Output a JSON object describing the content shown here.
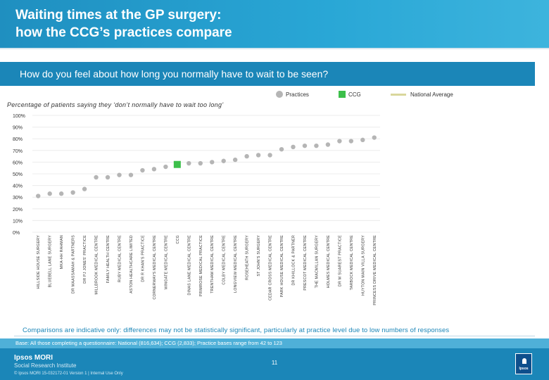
{
  "header": {
    "title": "Waiting times at the GP surgery:\nhow the CCG’s practices compare"
  },
  "question": "How do you feel about how long you normally have to wait to be seen?",
  "legend": {
    "practices": "Practices",
    "ccg": "CCG",
    "national": "National Average"
  },
  "colors": {
    "practice": "#b5b5b5",
    "ccg": "#3cbf4a",
    "national": "#d9d79c",
    "brand": "#1b86b8"
  },
  "chart_data": {
    "type": "scatter",
    "title": "Percentage of patients saying they ‘don’t normally have to wait too long’",
    "ylim": [
      0,
      100
    ],
    "yticks": [
      "100%",
      "90%",
      "80%",
      "70%",
      "60%",
      "50%",
      "40%",
      "30%",
      "20%",
      "10%",
      "0%"
    ],
    "categories": [
      "HILLSIDE HOUSE SURGERY",
      "BLUEBELL LANE SURGERY",
      "MKA-HH RAHMAN",
      "DR MAASSAMAH & PARTNERS",
      "DR PJ JONES' PRACTICE",
      "MILLBROOK MEDICAL CENTRE",
      "FAMILY HEALTH CENTRE",
      "RUBY MEDICAL CENTRE",
      "ASTON HEALTHCARE LIMITED",
      "DR R KHAN'S PRACTICE",
      "CORNERWAYS MEDICAL CENTRE",
      "WINGATE MEDICAL CENTRE",
      "CCG",
      "DINAS LANE MEDICAL CENTRE",
      "PRIMROSE MEDICAL PRACTICE",
      "TRENTHAM MEDICAL CENTRE",
      "COLBY MEDICAL CENTRE",
      "LONGVIEW MEDICAL CENTRE",
      "ROSEHEATH SURGERY",
      "ST JOHN'S SURGERY",
      "CEDAR CROSS MEDICAL CENTRE",
      "PARK HOUSE MEDICAL CENTRE",
      "DR KHILLOCK & PARTNER",
      "PRESCOT MEDICAL CENTRE",
      "THE MACMILLAN SURGERY",
      "HOLMES MEDICAL CENTRE",
      "DR M SUAREST PRACTICE",
      "TARBOCK MEDICAL CENTRE",
      "HUYTON MAIN VILLA SURGERY",
      "PRINCESS DRIVE MEDICAL CENTRE"
    ],
    "values": [
      31,
      33,
      33,
      34,
      37,
      47,
      47,
      49,
      49,
      53,
      54,
      56,
      58,
      59,
      59,
      60,
      61,
      62,
      65,
      66,
      66,
      71,
      73,
      74,
      74,
      75,
      78,
      78,
      79,
      81
    ],
    "ccg_index": 12,
    "national_average": null
  },
  "footnote": "Comparisons are indicative only: differences may not be statistically significant, particularly at practice level due to low numbers of responses",
  "base": "Base: All those completing a questionnaire: National (816,634); CCG (2,833); Practice bases range from 42 to 123",
  "footer": {
    "brand": "Ipsos MORI",
    "brand_sub": "Social Research Institute",
    "copyright": "© Ipsos MORI    15-032172-01 Version 1 | Internal Use Only",
    "page": "11",
    "logo_text": "Ipsos"
  }
}
